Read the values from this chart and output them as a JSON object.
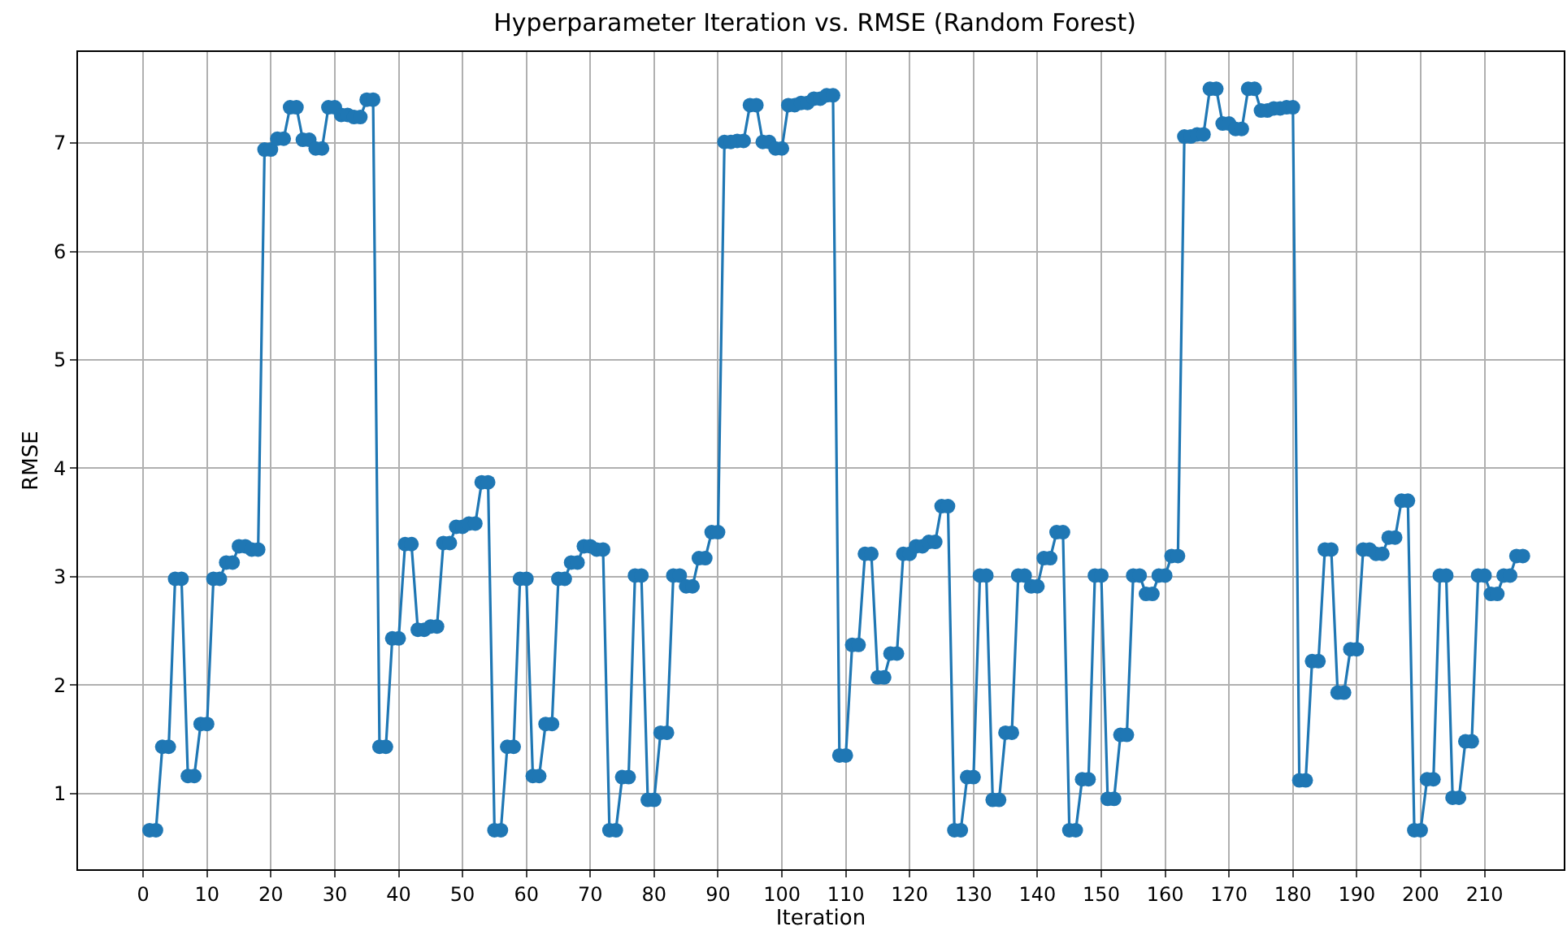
{
  "chart_data": {
    "type": "line",
    "title": "Hyperparameter Iteration vs. RMSE (Random Forest)",
    "xlabel": "Iteration",
    "ylabel": "RMSE",
    "x": [
      1,
      2,
      3,
      4,
      5,
      6,
      7,
      8,
      9,
      10,
      11,
      12,
      13,
      14,
      15,
      16,
      17,
      18,
      19,
      20,
      21,
      22,
      23,
      24,
      25,
      26,
      27,
      28,
      29,
      30,
      31,
      32,
      33,
      34,
      35,
      36,
      37,
      38,
      39,
      40,
      41,
      42,
      43,
      44,
      45,
      46,
      47,
      48,
      49,
      50,
      51,
      52,
      53,
      54,
      55,
      56,
      57,
      58,
      59,
      60,
      61,
      62,
      63,
      64,
      65,
      66,
      67,
      68,
      69,
      70,
      71,
      72,
      73,
      74,
      75,
      76,
      77,
      78,
      79,
      80,
      81,
      82,
      83,
      84,
      85,
      86,
      87,
      88,
      89,
      90,
      91,
      92,
      93,
      94,
      95,
      96,
      97,
      98,
      99,
      100,
      101,
      102,
      103,
      104,
      105,
      106,
      107,
      108,
      109,
      110,
      111,
      112,
      113,
      114,
      115,
      116,
      117,
      118,
      119,
      120,
      121,
      122,
      123,
      124,
      125,
      126,
      127,
      128,
      129,
      130,
      131,
      132,
      133,
      134,
      135,
      136,
      137,
      138,
      139,
      140,
      141,
      142,
      143,
      144,
      145,
      146,
      147,
      148,
      149,
      150,
      151,
      152,
      153,
      154,
      155,
      156,
      157,
      158,
      159,
      160,
      161,
      162,
      163,
      164,
      165,
      166,
      167,
      168,
      169,
      170,
      171,
      172,
      173,
      174,
      175,
      176,
      177,
      178,
      179,
      180,
      181,
      182,
      183,
      184,
      185,
      186,
      187,
      188,
      189,
      190,
      191,
      192,
      193,
      194,
      195,
      196,
      197,
      198,
      199,
      200,
      201,
      202,
      203,
      204,
      205,
      206,
      207,
      208,
      209,
      210,
      211,
      212,
      213,
      214,
      215,
      216
    ],
    "series": [
      {
        "color": "#1f77b4",
        "values": [
          0.66,
          0.66,
          1.43,
          1.43,
          2.98,
          2.98,
          1.16,
          1.16,
          1.64,
          1.64,
          2.98,
          2.98,
          3.13,
          3.13,
          3.28,
          3.28,
          3.25,
          3.25,
          6.94,
          6.94,
          7.04,
          7.04,
          7.33,
          7.33,
          7.03,
          7.03,
          6.95,
          6.95,
          7.33,
          7.33,
          7.26,
          7.26,
          7.24,
          7.24,
          7.4,
          7.4,
          1.43,
          1.43,
          2.43,
          2.43,
          3.3,
          3.3,
          2.51,
          2.51,
          2.54,
          2.54,
          3.31,
          3.31,
          3.46,
          3.46,
          3.49,
          3.49,
          3.87,
          3.87,
          0.66,
          0.66,
          1.43,
          1.43,
          2.98,
          2.98,
          1.16,
          1.16,
          1.64,
          1.64,
          2.98,
          2.98,
          3.13,
          3.13,
          3.28,
          3.28,
          3.25,
          3.25,
          0.66,
          0.66,
          1.15,
          1.15,
          3.01,
          3.01,
          0.94,
          0.94,
          1.56,
          1.56,
          3.01,
          3.01,
          2.91,
          2.91,
          3.17,
          3.17,
          3.41,
          3.41,
          7.01,
          7.01,
          7.02,
          7.02,
          7.35,
          7.35,
          7.01,
          7.01,
          6.95,
          6.95,
          7.35,
          7.35,
          7.37,
          7.37,
          7.41,
          7.41,
          7.44,
          7.44,
          1.35,
          1.35,
          2.37,
          2.37,
          3.21,
          3.21,
          2.07,
          2.07,
          2.29,
          2.29,
          3.21,
          3.21,
          3.28,
          3.28,
          3.32,
          3.32,
          3.65,
          3.65,
          0.66,
          0.66,
          1.15,
          1.15,
          3.01,
          3.01,
          0.94,
          0.94,
          1.56,
          1.56,
          3.01,
          3.01,
          2.91,
          2.91,
          3.17,
          3.17,
          3.41,
          3.41,
          0.66,
          0.66,
          1.13,
          1.13,
          3.01,
          3.01,
          0.95,
          0.95,
          1.54,
          1.54,
          3.01,
          3.01,
          2.84,
          2.84,
          3.01,
          3.01,
          3.19,
          3.19,
          7.06,
          7.06,
          7.08,
          7.08,
          7.5,
          7.5,
          7.18,
          7.18,
          7.13,
          7.13,
          7.5,
          7.5,
          7.3,
          7.3,
          7.32,
          7.32,
          7.33,
          7.33,
          1.12,
          1.12,
          2.22,
          2.22,
          3.25,
          3.25,
          1.93,
          1.93,
          2.33,
          2.33,
          3.25,
          3.25,
          3.21,
          3.21,
          3.36,
          3.36,
          3.7,
          3.7,
          0.66,
          0.66,
          1.13,
          1.13,
          3.01,
          3.01,
          0.96,
          0.96,
          1.48,
          1.48,
          3.01,
          3.01,
          2.84,
          2.84,
          3.01,
          3.01,
          3.19,
          3.19
        ]
      }
    ],
    "xlim": [
      -10.2,
      222.4
    ],
    "ylim": [
      0.3,
      7.84
    ],
    "xticks": [
      0,
      10,
      20,
      30,
      40,
      50,
      60,
      70,
      80,
      90,
      100,
      110,
      120,
      130,
      140,
      150,
      160,
      170,
      180,
      190,
      200,
      210
    ],
    "yticks": [
      1,
      2,
      3,
      4,
      5,
      6,
      7
    ],
    "grid": true,
    "marker": "circle",
    "line_style": "solid"
  }
}
